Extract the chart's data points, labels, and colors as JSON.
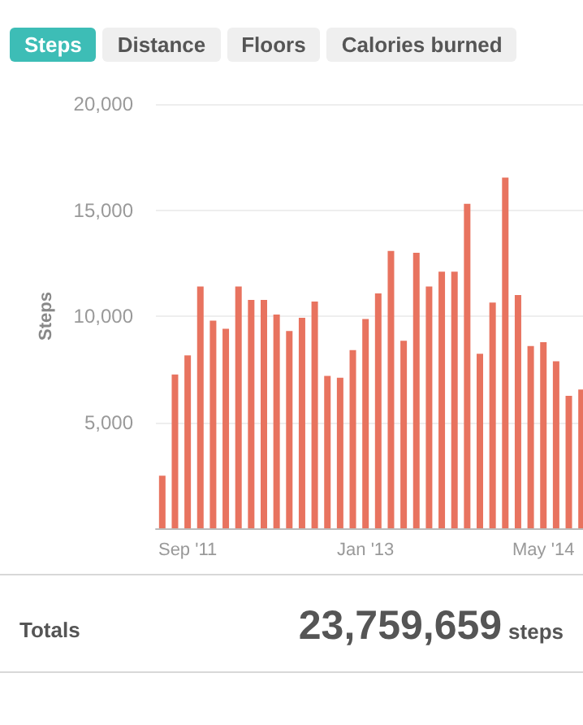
{
  "chart_data": {
    "type": "bar",
    "ylabel": "Steps",
    "categories": [
      null,
      null,
      "Sep '11",
      null,
      null,
      null,
      null,
      null,
      null,
      null,
      null,
      null,
      null,
      null,
      null,
      null,
      "Jan '13",
      null,
      null,
      null,
      null,
      null,
      null,
      null,
      null,
      null,
      null,
      null,
      null,
      null,
      "May '14",
      null,
      null,
      null
    ],
    "values": [
      2480,
      7250,
      8150,
      11400,
      9790,
      9410,
      11400,
      10770,
      10770,
      10080,
      9300,
      9920,
      10690,
      7180,
      7100,
      8400,
      9870,
      11070,
      13070,
      8840,
      12990,
      11400,
      12100,
      12100,
      15300,
      8230,
      10640,
      16530,
      11000,
      8590,
      8770,
      7870,
      6250,
      6540
    ],
    "color": "#e8735f",
    "ylim": [
      0,
      20000
    ],
    "yticks": [
      {
        "value": 5000,
        "label": "5,000"
      },
      {
        "value": 10000,
        "label": "10,000"
      },
      {
        "value": 15000,
        "label": "15,000"
      },
      {
        "value": 20000,
        "label": "20,000"
      }
    ],
    "grid": "y",
    "annotations": [
      "Steps",
      "Distance",
      "Floors",
      "Calories burned",
      "Totals",
      "23,759,659",
      "steps"
    ]
  }
}
